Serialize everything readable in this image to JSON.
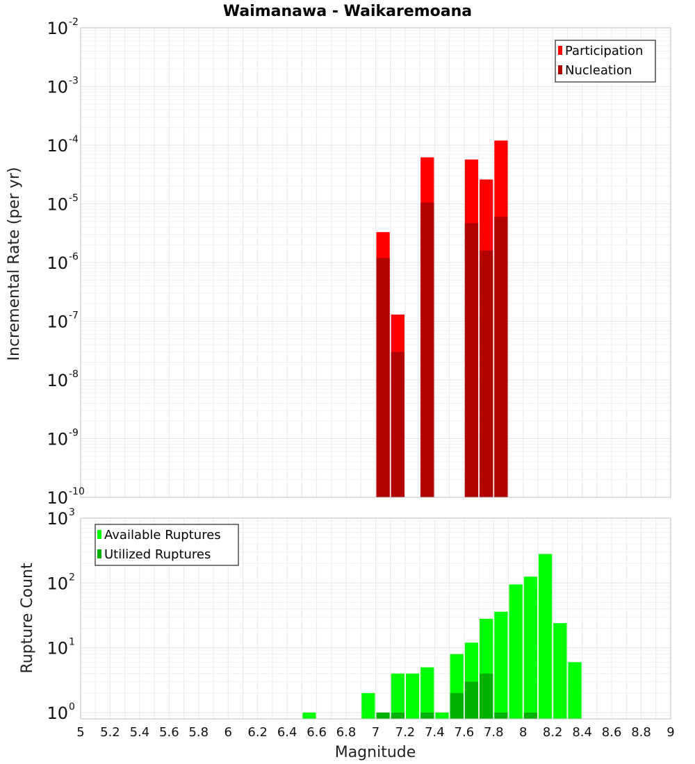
{
  "chart_data": [
    {
      "type": "bar",
      "title": "Waimanawa - Waikaremoana",
      "xlabel": "",
      "ylabel": "Incremental Rate (per yr)",
      "yscale": "log",
      "ylim": [
        1e-10,
        0.01
      ],
      "y_tick_exponents": [
        -2,
        -3,
        -4,
        -5,
        -6,
        -7,
        -8,
        -9,
        -10
      ],
      "xlim": [
        5,
        9
      ],
      "bin_width": 0.1,
      "legend_position": "top-right",
      "series": [
        {
          "name": "Participation",
          "color": "#ff0000",
          "x": [
            7.05,
            7.15,
            7.35,
            7.65,
            7.75,
            7.85
          ],
          "values": [
            3.3e-06,
            1.3e-07,
            6.2e-05,
            5.7e-05,
            2.6e-05,
            0.00012
          ]
        },
        {
          "name": "Nucleation",
          "color": "#b00000",
          "x": [
            7.05,
            7.15,
            7.35,
            7.65,
            7.75,
            7.85
          ],
          "values": [
            1.2e-06,
            3e-08,
            1.05e-05,
            4.7e-06,
            1.6e-06,
            6e-06
          ]
        }
      ]
    },
    {
      "type": "bar",
      "xlabel": "Magnitude",
      "ylabel": "Rupture Count",
      "yscale": "log",
      "ylim": [
        0.8,
        1000
      ],
      "y_tick_exponents": [
        3,
        2,
        1,
        0
      ],
      "xlim": [
        5,
        9
      ],
      "x_ticks": [
        "5",
        "5.2",
        "5.4",
        "5.6",
        "5.8",
        "6",
        "6.2",
        "6.4",
        "6.6",
        "6.8",
        "7",
        "7.2",
        "7.4",
        "7.6",
        "7.8",
        "8",
        "8.2",
        "8.4",
        "8.6",
        "8.8",
        "9"
      ],
      "bin_width": 0.1,
      "legend_position": "top-left",
      "series": [
        {
          "name": "Available Ruptures",
          "color": "#00ff00",
          "x": [
            6.55,
            6.95,
            7.15,
            7.25,
            7.35,
            7.45,
            7.55,
            7.65,
            7.75,
            7.85,
            7.95,
            8.05,
            8.15,
            8.25,
            8.35
          ],
          "values": [
            1,
            2,
            4,
            4,
            5,
            1,
            8,
            12,
            28,
            36,
            95,
            125,
            280,
            24,
            6
          ]
        },
        {
          "name": "Utilized Ruptures",
          "color": "#00b000",
          "x": [
            7.05,
            7.15,
            7.35,
            7.55,
            7.65,
            7.75,
            7.85,
            8.05
          ],
          "values": [
            1,
            1,
            1,
            2,
            3,
            4,
            1,
            1
          ]
        }
      ]
    }
  ]
}
